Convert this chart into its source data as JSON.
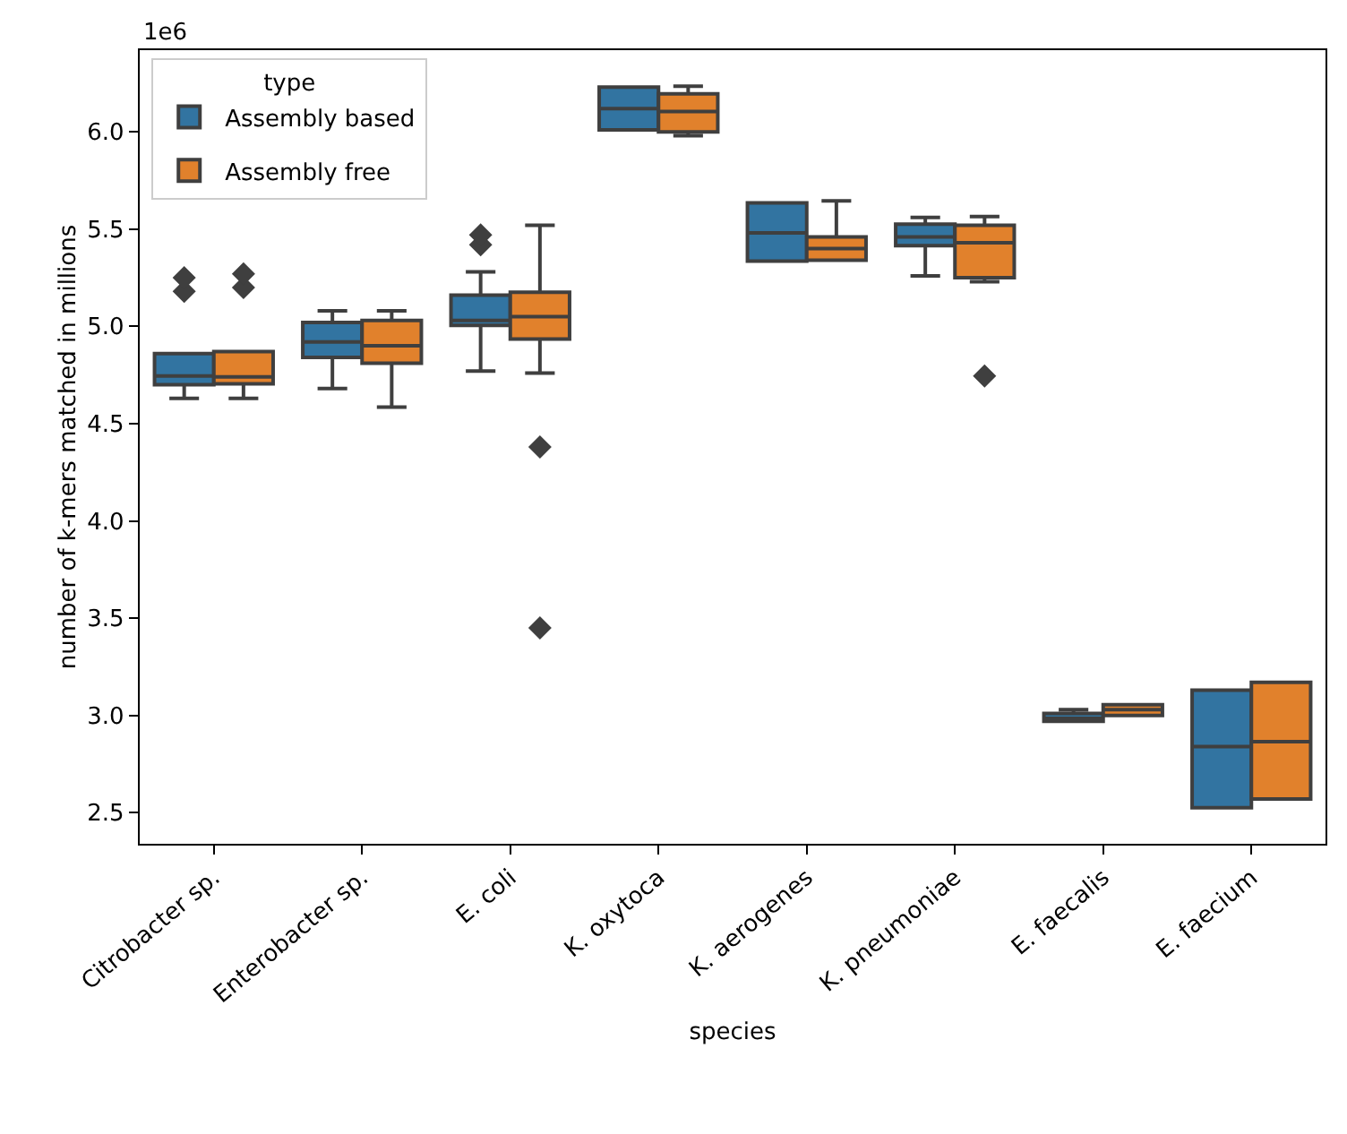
{
  "chart_data": {
    "type": "box",
    "xlabel": "species",
    "ylabel": "number of k-mers matched in millions",
    "legend_title": "type",
    "legend": "top left",
    "grid": false,
    "marker": "diamond",
    "annotations": [
      "1e6"
    ],
    "categories": [
      "Citrobacter sp.",
      "Enterobacter sp.",
      "E. coli",
      "K. oxytoca",
      "K. aerogenes",
      "K. pneumoniae",
      "E. faecalis",
      "E. faecium"
    ],
    "ylim": [
      2.34,
      6.42
    ],
    "yticks": [
      {
        "value": 2.5,
        "label": "2.5"
      },
      {
        "value": 3,
        "label": "3.0"
      },
      {
        "value": 3.5,
        "label": "3.5"
      },
      {
        "value": 4,
        "label": "4.0"
      },
      {
        "value": 4.5,
        "label": "4.5"
      },
      {
        "value": 5,
        "label": "5.0"
      },
      {
        "value": 5.5,
        "label": "5.5"
      },
      {
        "value": 6,
        "label": "6.0"
      }
    ],
    "series": [
      {
        "name": "Assembly based",
        "color": "#3274a1",
        "boxes": [
          {
            "low": 4.63,
            "q1": 4.7,
            "median": 4.745,
            "q3": 4.86,
            "high": 4.86,
            "outliers": [
              5.18,
              5.25
            ]
          },
          {
            "low": 4.68,
            "q1": 4.84,
            "median": 4.92,
            "q3": 5.02,
            "high": 5.08
          },
          {
            "low": 4.77,
            "q1": 5.005,
            "median": 5.03,
            "q3": 5.16,
            "high": 5.28,
            "outliers": [
              5.42,
              5.47
            ]
          },
          {
            "low": 6.01,
            "q1": 6.01,
            "median": 6.12,
            "q3": 6.23,
            "high": 6.23
          },
          {
            "low": 5.335,
            "q1": 5.335,
            "median": 5.48,
            "q3": 5.635,
            "high": 5.635
          },
          {
            "low": 5.26,
            "q1": 5.415,
            "median": 5.46,
            "q3": 5.525,
            "high": 5.56
          },
          {
            "low": 2.97,
            "q1": 2.97,
            "median": 2.985,
            "q3": 3.01,
            "high": 3.03
          },
          {
            "low": 2.525,
            "q1": 2.525,
            "median": 2.84,
            "q3": 3.13,
            "high": 3.13
          }
        ]
      },
      {
        "name": "Assembly free",
        "color": "#e1812c",
        "boxes": [
          {
            "low": 4.63,
            "q1": 4.705,
            "median": 4.74,
            "q3": 4.87,
            "high": 4.87,
            "outliers": [
              5.2,
              5.27
            ]
          },
          {
            "low": 4.585,
            "q1": 4.81,
            "median": 4.9,
            "q3": 5.03,
            "high": 5.08
          },
          {
            "low": 4.76,
            "q1": 4.935,
            "median": 5.05,
            "q3": 5.175,
            "high": 5.52,
            "outliers": [
              4.38,
              3.45
            ]
          },
          {
            "low": 5.98,
            "q1": 6.0,
            "median": 6.105,
            "q3": 6.195,
            "high": 6.235
          },
          {
            "low": 5.34,
            "q1": 5.34,
            "median": 5.4,
            "q3": 5.46,
            "high": 5.645
          },
          {
            "low": 5.23,
            "q1": 5.25,
            "median": 5.43,
            "q3": 5.52,
            "high": 5.565,
            "outliers": [
              4.745
            ]
          },
          {
            "low": 3.0,
            "q1": 3.0,
            "median": 3.03,
            "q3": 3.055,
            "high": 3.055
          },
          {
            "low": 2.57,
            "q1": 2.57,
            "median": 2.865,
            "q3": 3.17,
            "high": 3.17
          }
        ]
      }
    ]
  }
}
